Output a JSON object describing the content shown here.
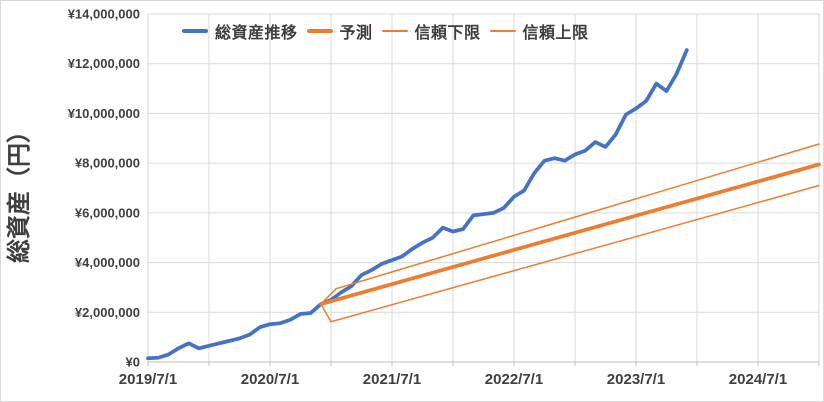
{
  "chart_data": {
    "type": "line",
    "title": "",
    "ylabel": "総資産（円）",
    "legend_position": "top-inside",
    "grid": true,
    "text_color": "#3f3f3f",
    "gridline_color": "#d9d9d9",
    "axis_line_color": "#bfbfbf",
    "x_axis": {
      "origin": "2019/7/1",
      "unit": "month",
      "span_months": 66,
      "gridline_every_months": 6,
      "tick_label_every_months": 12,
      "tick_labels": [
        "2019/7/1",
        "2020/7/1",
        "2021/7/1",
        "2022/7/1",
        "2023/7/1",
        "2024/7/1"
      ]
    },
    "y_axis": {
      "min": 0,
      "max": 14000000,
      "step": 2000000,
      "tick_labels": [
        "¥0",
        "¥2,000,000",
        "¥4,000,000",
        "¥6,000,000",
        "¥8,000,000",
        "¥10,000,000",
        "¥12,000,000",
        "¥14,000,000"
      ]
    },
    "series": [
      {
        "key": "actual",
        "name": "総資産推移",
        "color": "#4472C4",
        "weight": 3.75,
        "start_month": 0,
        "values_yen": [
          150000,
          170000,
          300000,
          550000,
          750000,
          550000,
          650000,
          750000,
          850000,
          950000,
          1100000,
          1400000,
          1520000,
          1560000,
          1700000,
          1930000,
          1970000,
          2330000,
          2500000,
          2800000,
          3050000,
          3500000,
          3700000,
          3950000,
          4100000,
          4250000,
          4550000,
          4800000,
          5000000,
          5400000,
          5250000,
          5350000,
          5900000,
          5950000,
          6000000,
          6200000,
          6650000,
          6900000,
          7600000,
          8100000,
          8200000,
          8100000,
          8350000,
          8500000,
          8850000,
          8650000,
          9150000,
          9950000,
          10200000,
          10500000,
          11200000,
          10900000,
          11600000,
          12550000
        ]
      },
      {
        "key": "forecast",
        "name": "予測",
        "color": "#ED7D31",
        "weight": 3.75,
        "points": [
          [
            17,
            2330000
          ],
          [
            66,
            7950000
          ]
        ]
      },
      {
        "key": "lower-bound",
        "name": "信頼下限",
        "color": "#ED7D31",
        "weight": 1.5,
        "points": [
          [
            17,
            2330000
          ],
          [
            18,
            1620000
          ],
          [
            66,
            7100000
          ]
        ]
      },
      {
        "key": "upper-bound",
        "name": "信頼上限",
        "color": "#ED7D31",
        "weight": 1.5,
        "points": [
          [
            17,
            2330000
          ],
          [
            18.5,
            2950000
          ],
          [
            66,
            8770000
          ]
        ]
      }
    ]
  }
}
